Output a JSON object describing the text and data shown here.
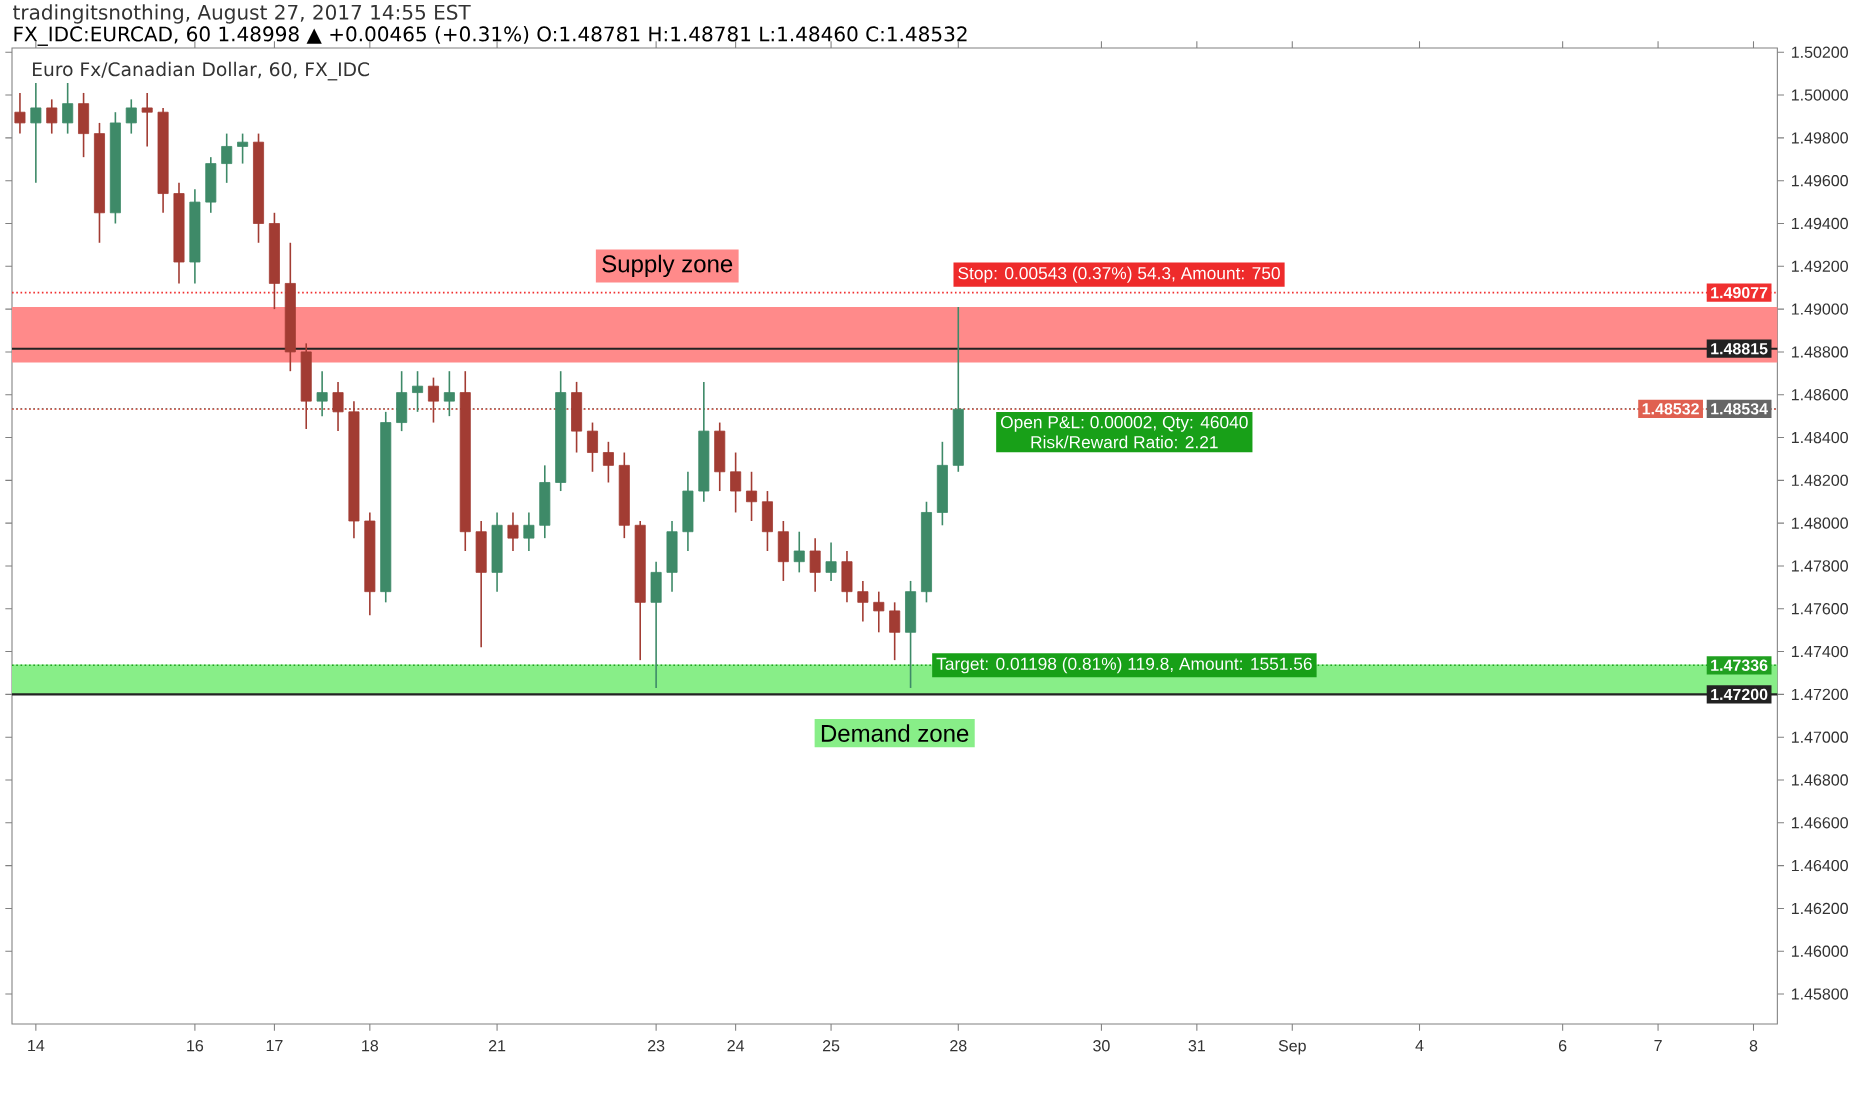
{
  "chart_data": {
    "type": "candlestick",
    "title": "Euro Fx/Canadian Dollar, 60, FX_IDC",
    "subtitle": "FX_IDC:EURCAD, 60  1.48998 ▲ +0.00465 (+0.31%) O:1.48781 H:1.48781 L:1.48460 C:1.48532",
    "categories": [
      null,
      "14",
      null,
      null,
      null,
      null,
      null,
      null,
      null,
      null,
      null,
      "16",
      null,
      null,
      null,
      null,
      "17",
      null,
      null,
      null,
      null,
      null,
      "18",
      null,
      null,
      null,
      null,
      null,
      null,
      null,
      "21",
      null,
      null,
      null,
      null,
      null,
      null,
      null,
      null,
      null,
      "23",
      null,
      null,
      null,
      null,
      "24",
      null,
      null,
      null,
      null,
      null,
      "25",
      null,
      null,
      null,
      null,
      null,
      null,
      null,
      "28",
      null,
      null,
      null,
      null,
      null,
      null,
      null,
      null,
      "30",
      null,
      null,
      null,
      null,
      null,
      "31",
      null,
      null,
      null,
      null,
      null,
      "Sep",
      null,
      null,
      null,
      null,
      null,
      null,
      null,
      "4",
      null,
      null,
      null,
      null,
      null,
      null,
      null,
      null,
      "6",
      null,
      null,
      null,
      null,
      null,
      "7",
      null,
      null,
      null,
      null,
      null,
      "8",
      null
    ],
    "ohlc": [
      [
        1.4992,
        1.5001,
        1.4982,
        1.4987
      ],
      [
        1.4987,
        1.5006,
        1.4959,
        1.4994
      ],
      [
        1.4994,
        1.4998,
        1.4982,
        1.4987
      ],
      [
        1.4987,
        1.5006,
        1.4982,
        1.4996
      ],
      [
        1.4996,
        1.5001,
        1.4971,
        1.4982
      ],
      [
        1.4982,
        1.4987,
        1.4931,
        1.4945
      ],
      [
        1.4945,
        1.4992,
        1.494,
        1.4987
      ],
      [
        1.4987,
        1.4998,
        1.4982,
        1.4994
      ],
      [
        1.4994,
        1.5001,
        1.4976,
        1.4992
      ],
      [
        1.4992,
        1.4994,
        1.4945,
        1.4954
      ],
      [
        1.4954,
        1.4959,
        1.4912,
        1.4922
      ],
      [
        1.4922,
        1.4956,
        1.4912,
        1.495
      ],
      [
        1.495,
        1.4971,
        1.4945,
        1.4968
      ],
      [
        1.4968,
        1.4982,
        1.4959,
        1.4976
      ],
      [
        1.4976,
        1.4982,
        1.4968,
        1.4978
      ],
      [
        1.4978,
        1.4982,
        1.4931,
        1.494
      ],
      [
        1.494,
        1.4945,
        1.49,
        1.4912
      ],
      [
        1.4912,
        1.4931,
        1.4871,
        1.488
      ],
      [
        1.488,
        1.4884,
        1.4844,
        1.4857
      ],
      [
        1.4857,
        1.4871,
        1.485,
        1.4861
      ],
      [
        1.4861,
        1.4866,
        1.4843,
        1.4852
      ],
      [
        1.4852,
        1.4857,
        1.4793,
        1.4801
      ],
      [
        1.4801,
        1.4805,
        1.4757,
        1.4768
      ],
      [
        1.4768,
        1.4852,
        1.4763,
        1.4847
      ],
      [
        1.4847,
        1.4871,
        1.4843,
        1.4861
      ],
      [
        1.4861,
        1.4871,
        1.4852,
        1.4864
      ],
      [
        1.4864,
        1.4868,
        1.4847,
        1.4857
      ],
      [
        1.4857,
        1.4871,
        1.485,
        1.4861
      ],
      [
        1.4861,
        1.4871,
        1.4787,
        1.4796
      ],
      [
        1.4796,
        1.4801,
        1.4742,
        1.4777
      ],
      [
        1.4777,
        1.4805,
        1.4768,
        1.4799
      ],
      [
        1.4799,
        1.4805,
        1.4787,
        1.4793
      ],
      [
        1.4793,
        1.4805,
        1.4787,
        1.4799
      ],
      [
        1.4799,
        1.4827,
        1.4793,
        1.4819
      ],
      [
        1.4819,
        1.4871,
        1.4815,
        1.4861
      ],
      [
        1.4861,
        1.4866,
        1.4833,
        1.4843
      ],
      [
        1.4843,
        1.4847,
        1.4824,
        1.4833
      ],
      [
        1.4833,
        1.4838,
        1.4819,
        1.4827
      ],
      [
        1.4827,
        1.4833,
        1.4793,
        1.4799
      ],
      [
        1.4799,
        1.4801,
        1.4736,
        1.4763
      ],
      [
        1.4763,
        1.4782,
        1.4723,
        1.4777
      ],
      [
        1.4777,
        1.4801,
        1.4768,
        1.4796
      ],
      [
        1.4796,
        1.4824,
        1.4787,
        1.4815
      ],
      [
        1.4815,
        1.4866,
        1.481,
        1.4843
      ],
      [
        1.4843,
        1.4847,
        1.4815,
        1.4824
      ],
      [
        1.4824,
        1.4833,
        1.4805,
        1.4815
      ],
      [
        1.4815,
        1.4824,
        1.4801,
        1.481
      ],
      [
        1.481,
        1.4815,
        1.4787,
        1.4796
      ],
      [
        1.4796,
        1.4801,
        1.4773,
        1.4782
      ],
      [
        1.4782,
        1.4796,
        1.4777,
        1.4787
      ],
      [
        1.4787,
        1.4793,
        1.4768,
        1.4777
      ],
      [
        1.4777,
        1.4791,
        1.4773,
        1.4782
      ],
      [
        1.4782,
        1.4787,
        1.4763,
        1.4768
      ],
      [
        1.4768,
        1.4773,
        1.4754,
        1.4763
      ],
      [
        1.4763,
        1.4768,
        1.4749,
        1.4759
      ],
      [
        1.4759,
        1.4763,
        1.4736,
        1.4749
      ],
      [
        1.4749,
        1.4773,
        1.4723,
        1.4768
      ],
      [
        1.4768,
        1.481,
        1.4763,
        1.4805
      ],
      [
        1.4805,
        1.4838,
        1.4799,
        1.4827
      ],
      [
        1.4827,
        1.4901,
        1.4824,
        1.48532
      ],
      null,
      null,
      null,
      null,
      null,
      null,
      null,
      null,
      null,
      null,
      null,
      null,
      null,
      null,
      null,
      null,
      null,
      null,
      null,
      null,
      null,
      null,
      null,
      null,
      null,
      null,
      null,
      null,
      null,
      null,
      null,
      null,
      null,
      null,
      null,
      null,
      null,
      null,
      null,
      null,
      null,
      null,
      null,
      null,
      null,
      null,
      null,
      null,
      null,
      null,
      null
    ],
    "ylim": [
      1.4566,
      1.5022
    ],
    "yticks": [
      {
        "value": 1.458,
        "label": "1.45800"
      },
      {
        "value": 1.46,
        "label": "1.46000"
      },
      {
        "value": 1.462,
        "label": "1.46200"
      },
      {
        "value": 1.464,
        "label": "1.46400"
      },
      {
        "value": 1.466,
        "label": "1.46600"
      },
      {
        "value": 1.468,
        "label": "1.46800"
      },
      {
        "value": 1.47,
        "label": "1.47000"
      },
      {
        "value": 1.472,
        "label": "1.47200"
      },
      {
        "value": 1.474,
        "label": "1.47400"
      },
      {
        "value": 1.476,
        "label": "1.47600"
      },
      {
        "value": 1.478,
        "label": "1.47800"
      },
      {
        "value": 1.48,
        "label": "1.48000"
      },
      {
        "value": 1.482,
        "label": "1.48200"
      },
      {
        "value": 1.484,
        "label": "1.48400"
      },
      {
        "value": 1.486,
        "label": "1.48600"
      },
      {
        "value": 1.488,
        "label": "1.48800"
      },
      {
        "value": 1.49,
        "label": "1.49000"
      },
      {
        "value": 1.492,
        "label": "1.49200"
      },
      {
        "value": 1.494,
        "label": "1.49400"
      },
      {
        "value": 1.496,
        "label": "1.49600"
      },
      {
        "value": 1.498,
        "label": "1.49800"
      },
      {
        "value": 1.5,
        "label": "1.50000"
      },
      {
        "value": 1.502,
        "label": "1.50200"
      }
    ],
    "bands": [
      {
        "axis": "y",
        "from": 1.4875,
        "to": 1.4901,
        "label": "Supply zone",
        "color": "#ff8a8a"
      },
      {
        "axis": "y",
        "from": 1.472,
        "to": 1.4734,
        "label": "Demand zone",
        "color": "#88ee88"
      }
    ],
    "ref_lines": [
      {
        "axis": "y",
        "value": 1.49077,
        "label": "1.49077",
        "color": "#f03030",
        "line_style": "dotted"
      },
      {
        "axis": "y",
        "value": 1.48534,
        "label": "1.48534",
        "color": "#666666",
        "line_style": "dotted"
      },
      {
        "axis": "y",
        "value": 1.47336,
        "label": "1.47336",
        "color": "#20a020",
        "line_style": "dotted"
      },
      {
        "axis": "y",
        "value": 1.48815,
        "label": "1.48815",
        "color": "#222222",
        "line_style": "solid"
      },
      {
        "axis": "y",
        "value": 1.472,
        "label": "1.47200",
        "color": "#222222",
        "line_style": "solid"
      },
      {
        "axis": "y",
        "value": 1.48532,
        "label": "1.48532",
        "color": "#e06050",
        "line_style": "dotted"
      }
    ],
    "annotations": [
      "tradingitsnothing, August 27, 2017 14:55 EST",
      {
        "text": "Stop: 0.00543 (0.37%) 54.3, Amount: 750",
        "x": "28",
        "y": 1.49077
      },
      {
        "text": "Open P&L: 0.00002, Qty: 46040",
        "x": "28",
        "y": 1.48534
      },
      "Risk/Reward Ratio: 2.21",
      {
        "text": "Target: 0.01198 (0.81%) 119.8, Amount: 1551.56",
        "x": "28",
        "y": 1.47336
      }
    ],
    "grid": false
  }
}
